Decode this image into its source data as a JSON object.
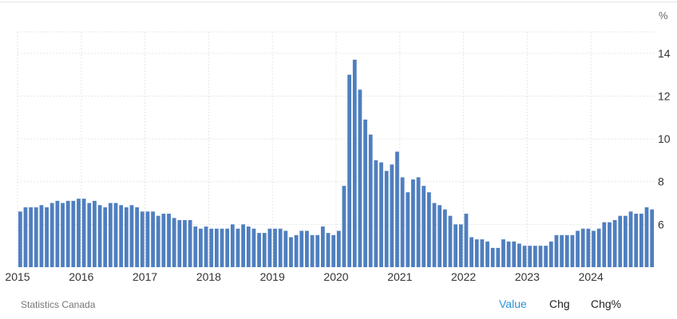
{
  "source": "Statistics Canada",
  "tabs": [
    {
      "label": "Value",
      "active": true
    },
    {
      "label": "Chg",
      "active": false
    },
    {
      "label": "Chg%",
      "active": false
    }
  ],
  "colors": {
    "bar": "#4f7fbf",
    "active_tab": "#2a94d6",
    "grid": "#e6e6e6",
    "axis_text": "#333333"
  },
  "chart_data": {
    "type": "bar",
    "title": "",
    "xlabel": "",
    "ylabel": "",
    "unit_label": "%",
    "y_axis_position": "right",
    "ylim": [
      4,
      15
    ],
    "yticks": [
      6,
      8,
      10,
      12,
      14
    ],
    "x_tick_labels": [
      "2015",
      "2016",
      "2017",
      "2018",
      "2019",
      "2020",
      "2021",
      "2022",
      "2023",
      "2024"
    ],
    "start": "2015-01",
    "frequency": "monthly",
    "grid": true,
    "values": [
      6.6,
      6.8,
      6.8,
      6.8,
      6.9,
      6.8,
      7.0,
      7.1,
      7.0,
      7.1,
      7.1,
      7.2,
      7.2,
      7.0,
      7.1,
      6.9,
      6.8,
      7.0,
      7.0,
      6.9,
      6.8,
      6.9,
      6.8,
      6.6,
      6.6,
      6.6,
      6.4,
      6.5,
      6.5,
      6.3,
      6.2,
      6.2,
      6.2,
      5.9,
      5.8,
      5.9,
      5.8,
      5.8,
      5.8,
      5.8,
      6.0,
      5.8,
      6.0,
      5.9,
      5.8,
      5.6,
      5.6,
      5.8,
      5.8,
      5.8,
      5.7,
      5.4,
      5.5,
      5.7,
      5.7,
      5.5,
      5.5,
      5.9,
      5.6,
      5.5,
      5.7,
      7.8,
      13.0,
      13.7,
      12.3,
      10.9,
      10.2,
      9.0,
      8.9,
      8.5,
      8.8,
      9.4,
      8.2,
      7.5,
      8.1,
      8.2,
      7.8,
      7.5,
      7.0,
      6.9,
      6.7,
      6.4,
      6.0,
      6.0,
      6.5,
      5.4,
      5.3,
      5.3,
      5.2,
      4.9,
      4.9,
      5.3,
      5.2,
      5.2,
      5.1,
      5.0,
      5.0,
      5.0,
      5.0,
      5.0,
      5.2,
      5.5,
      5.5,
      5.5,
      5.5,
      5.7,
      5.8,
      5.8,
      5.7,
      5.8,
      6.1,
      6.1,
      6.2,
      6.4,
      6.4,
      6.6,
      6.5,
      6.5,
      6.8,
      6.7
    ]
  }
}
